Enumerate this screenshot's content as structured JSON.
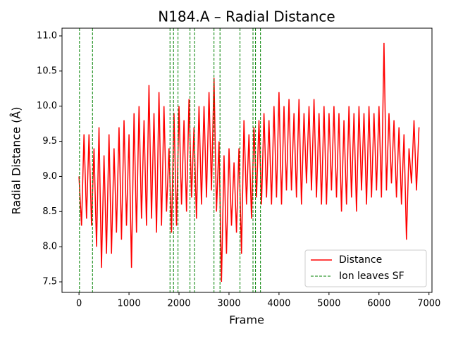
{
  "chart_data": {
    "type": "line",
    "title": "N184.A – Radial Distance",
    "xlabel": "Frame",
    "ylabel": "Radial Distance (Å)",
    "x": [
      0,
      50,
      100,
      150,
      200,
      250,
      300,
      350,
      400,
      450,
      500,
      550,
      600,
      650,
      700,
      750,
      800,
      850,
      900,
      950,
      1000,
      1050,
      1100,
      1150,
      1200,
      1250,
      1300,
      1350,
      1400,
      1450,
      1500,
      1550,
      1600,
      1650,
      1700,
      1750,
      1800,
      1850,
      1900,
      1950,
      2000,
      2050,
      2100,
      2150,
      2200,
      2250,
      2300,
      2350,
      2400,
      2450,
      2500,
      2550,
      2600,
      2650,
      2700,
      2750,
      2800,
      2850,
      2900,
      2950,
      3000,
      3050,
      3100,
      3150,
      3200,
      3250,
      3300,
      3350,
      3400,
      3450,
      3500,
      3550,
      3600,
      3650,
      3700,
      3750,
      3800,
      3850,
      3900,
      3950,
      4000,
      4050,
      4100,
      4150,
      4200,
      4250,
      4300,
      4350,
      4400,
      4450,
      4500,
      4550,
      4600,
      4650,
      4700,
      4750,
      4800,
      4850,
      4900,
      4950,
      5000,
      5050,
      5100,
      5150,
      5200,
      5250,
      5300,
      5350,
      5400,
      5450,
      5500,
      5550,
      5600,
      5650,
      5700,
      5750,
      5800,
      5850,
      5900,
      5950,
      6000,
      6050,
      6100,
      6150,
      6200,
      6250,
      6300,
      6350,
      6400,
      6450,
      6500,
      6550,
      6600,
      6650,
      6700,
      6750,
      6800
    ],
    "series": [
      {
        "name": "Distance",
        "color": "#ff0000",
        "values": [
          9.0,
          8.3,
          9.6,
          8.4,
          9.6,
          8.3,
          9.4,
          8.0,
          9.7,
          7.7,
          9.3,
          7.9,
          9.6,
          7.9,
          9.4,
          8.2,
          9.7,
          8.1,
          9.8,
          8.3,
          9.6,
          7.7,
          9.9,
          8.2,
          10.0,
          8.4,
          9.8,
          8.3,
          10.3,
          8.4,
          9.9,
          8.2,
          10.2,
          8.3,
          10.0,
          8.5,
          9.4,
          8.2,
          9.9,
          8.3,
          10.0,
          8.6,
          9.8,
          8.5,
          10.1,
          8.7,
          9.7,
          8.4,
          10.0,
          8.6,
          10.0,
          8.7,
          10.2,
          8.8,
          10.4,
          8.5,
          9.5,
          7.5,
          9.3,
          7.9,
          9.4,
          8.3,
          9.2,
          8.2,
          9.4,
          7.9,
          9.8,
          8.6,
          9.6,
          8.4,
          9.7,
          8.7,
          9.8,
          8.6,
          9.9,
          8.7,
          9.8,
          8.6,
          10.0,
          8.7,
          10.2,
          8.6,
          10.0,
          8.8,
          10.1,
          8.8,
          9.9,
          8.7,
          10.1,
          8.6,
          9.9,
          8.9,
          10.0,
          8.8,
          10.1,
          8.7,
          9.9,
          8.6,
          10.0,
          8.6,
          9.9,
          8.8,
          10.0,
          8.7,
          9.9,
          8.5,
          9.8,
          8.6,
          10.0,
          8.7,
          9.9,
          8.5,
          10.0,
          8.8,
          9.9,
          8.6,
          10.0,
          8.7,
          9.9,
          8.8,
          10.0,
          8.7,
          10.9,
          8.8,
          9.9,
          8.9,
          9.8,
          8.7,
          9.7,
          8.6,
          9.6,
          8.1,
          9.4,
          8.9,
          9.8,
          8.8,
          9.7
        ]
      }
    ],
    "vlines": {
      "name": "Ion leaves SF",
      "color": "#008000",
      "values": [
        10,
        270,
        1820,
        1890,
        1980,
        2220,
        2310,
        2700,
        2820,
        3220,
        3480,
        3530,
        3630
      ]
    },
    "xlim": [
      -340,
      7060
    ],
    "ylim": [
      7.35,
      11.11
    ],
    "xticks": [
      0,
      1000,
      2000,
      3000,
      4000,
      5000,
      6000,
      7000
    ],
    "yticks": [
      7.5,
      {
        "value": 8,
        "label": "8.0"
      },
      8.5,
      {
        "value": 9,
        "label": "9.0"
      },
      9.5,
      {
        "value": 10,
        "label": "10.0"
      },
      10.5,
      {
        "value": 11,
        "label": "11.0"
      }
    ],
    "legend": "lower right"
  }
}
